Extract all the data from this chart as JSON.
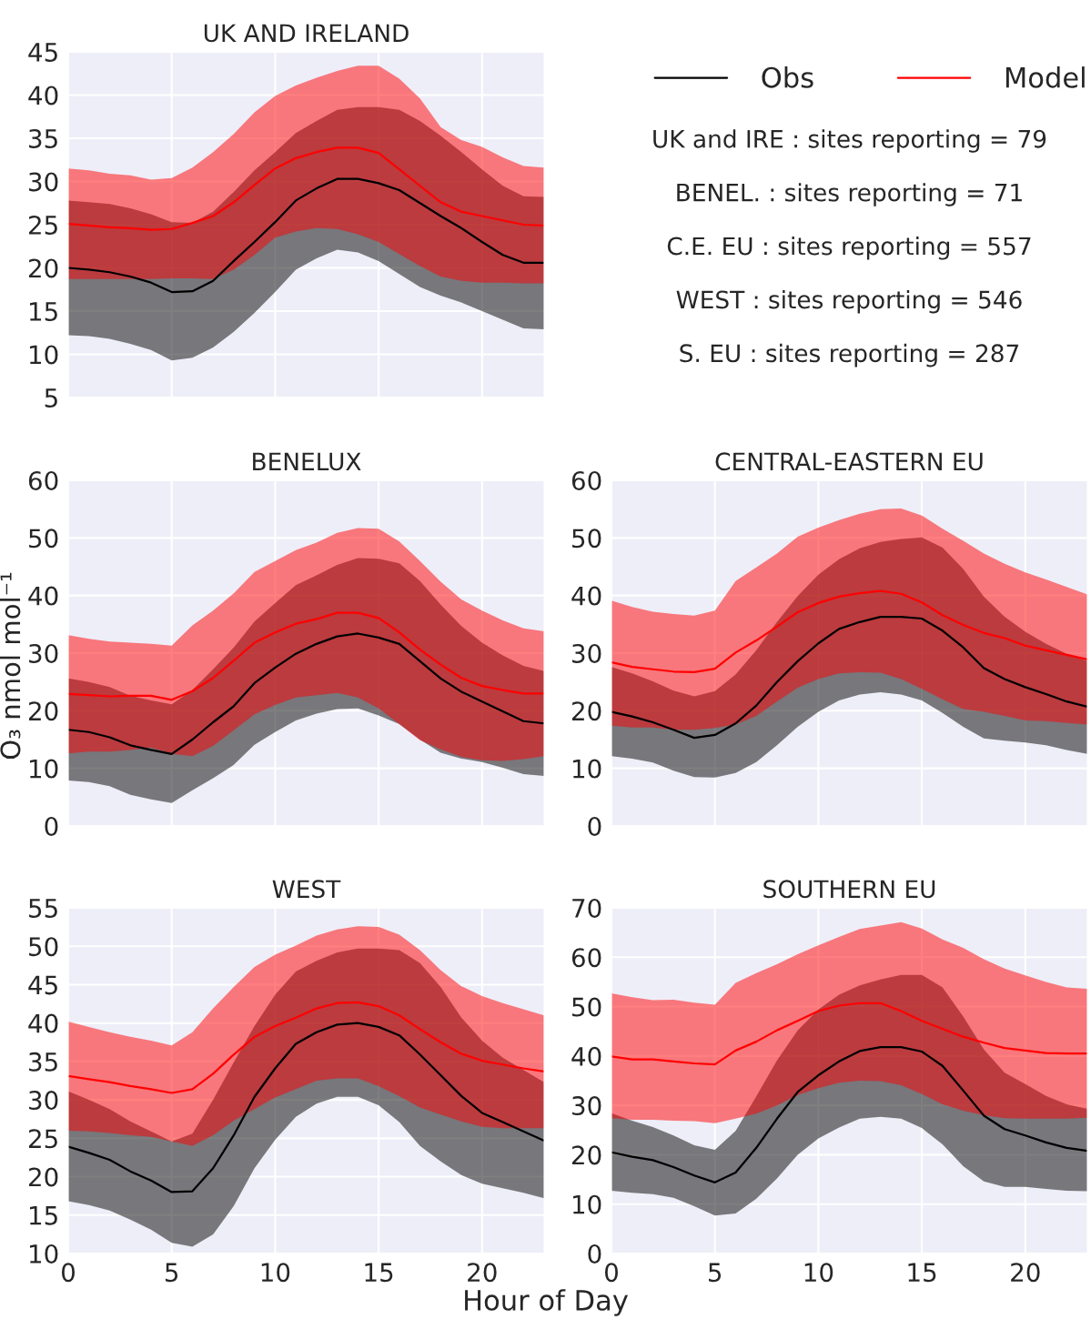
{
  "chart_data": [
    {
      "type": "line",
      "title": "UK AND IRELAND",
      "x": [
        0,
        1,
        2,
        3,
        4,
        5,
        6,
        7,
        8,
        9,
        10,
        11,
        12,
        13,
        14,
        15,
        16,
        17,
        18,
        19,
        20,
        21,
        22,
        23
      ],
      "xlim": [
        0,
        23
      ],
      "xticks": [
        0,
        5,
        10,
        15,
        20
      ],
      "ylim": [
        5,
        45
      ],
      "yticks": [
        5,
        10,
        15,
        20,
        25,
        30,
        35,
        40,
        45
      ],
      "tick_labels": "y",
      "grid": true,
      "legend": "right",
      "series": [
        {
          "name": "Obs",
          "color": "#000000",
          "values": [
            20,
            19.8,
            19.5,
            19,
            18.3,
            17.2,
            17.3,
            18.5,
            20.8,
            23,
            25.3,
            27.8,
            29.2,
            30.3,
            30.3,
            29.8,
            29,
            27.5,
            26,
            24.6,
            23,
            21.5,
            20.6,
            20.6
          ],
          "lower": [
            12.2,
            12.1,
            11.8,
            11.2,
            10.5,
            9.3,
            9.6,
            10.8,
            12.6,
            14.8,
            17.2,
            19.8,
            21.1,
            22.1,
            21.8,
            20.8,
            19.3,
            17.8,
            16.8,
            16,
            15,
            14,
            13,
            12.9
          ],
          "upper": [
            27.8,
            27.6,
            27.4,
            26.9,
            26.2,
            25.3,
            25.2,
            26.5,
            28.8,
            31.3,
            33.4,
            35.6,
            37,
            38.3,
            38.6,
            38.6,
            38.3,
            37,
            35.3,
            33.4,
            31.4,
            29.5,
            28.3,
            28.2
          ]
        },
        {
          "name": "Model",
          "color": "#ff0000",
          "values": [
            25.1,
            24.9,
            24.7,
            24.6,
            24.4,
            24.5,
            25.2,
            26,
            27.6,
            29.6,
            31.5,
            32.7,
            33.4,
            33.9,
            33.9,
            33.3,
            31.4,
            29.5,
            27.6,
            26.5,
            26,
            25.5,
            25,
            24.9
          ],
          "lower": [
            18.7,
            18.7,
            18.7,
            18.7,
            18.7,
            18.8,
            18.8,
            18.7,
            19.8,
            21.5,
            23.5,
            24.2,
            24.6,
            24.5,
            23.9,
            23,
            21.6,
            20.2,
            19,
            18.5,
            18.3,
            18.3,
            18.2,
            18.2
          ],
          "upper": [
            31.5,
            31.3,
            30.9,
            30.7,
            30.2,
            30.4,
            31.6,
            33.4,
            35.5,
            38,
            39.9,
            41.1,
            42,
            42.8,
            43.4,
            43.4,
            41.9,
            39.6,
            36.3,
            34.8,
            34,
            32.8,
            31.8,
            31.6
          ]
        }
      ]
    },
    {
      "type": "other",
      "annotations": [
        "UK and IRE : sites reporting = 79",
        "BENEL. : sites reporting = 71",
        "C.E. EU : sites reporting = 557",
        "WEST : sites reporting = 546",
        "S. EU : sites reporting = 287"
      ]
    },
    {
      "type": "line",
      "title": "BENELUX",
      "ylabel": "O₃ nmol mol⁻¹",
      "x": [
        0,
        1,
        2,
        3,
        4,
        5,
        6,
        7,
        8,
        9,
        10,
        11,
        12,
        13,
        14,
        15,
        16,
        17,
        18,
        19,
        20,
        21,
        22,
        23
      ],
      "xlim": [
        0,
        23
      ],
      "xticks": [
        0,
        5,
        10,
        15,
        20
      ],
      "ylim": [
        0,
        60
      ],
      "yticks": [
        0,
        10,
        20,
        30,
        40,
        50,
        60
      ],
      "tick_labels": "y",
      "grid": true,
      "series": [
        {
          "color": "#000000",
          "values": [
            16.7,
            16.3,
            15.4,
            14,
            13.2,
            12.5,
            15,
            18,
            20.8,
            24.8,
            27.5,
            29.9,
            31.6,
            32.9,
            33.4,
            32.7,
            31.6,
            28.6,
            25.6,
            23.3,
            21.6,
            19.9,
            18.2,
            17.8
          ],
          "lower": [
            7.9,
            7.6,
            6.9,
            5.4,
            4.6,
            4,
            6.2,
            8.3,
            10.6,
            14.1,
            16.3,
            18.3,
            19.5,
            20.3,
            20.4,
            19.2,
            17.7,
            15,
            12.7,
            11.7,
            11.1,
            10.1,
            9,
            8.7
          ],
          "upper": [
            25.6,
            25,
            24.1,
            22.6,
            21.8,
            21.1,
            23.6,
            27.2,
            31,
            35.5,
            38.7,
            41.8,
            43.5,
            45.3,
            46.5,
            46.4,
            45.6,
            42.5,
            38.4,
            34.7,
            31.8,
            29.6,
            27.8,
            26.9
          ]
        },
        {
          "color": "#ff0000",
          "values": [
            22.9,
            22.7,
            22.5,
            22.6,
            22.6,
            21.9,
            23.4,
            25.7,
            28.7,
            31.8,
            33.6,
            35.1,
            35.9,
            37,
            37,
            36.1,
            33.6,
            30.6,
            28,
            25.7,
            24.3,
            23.6,
            23,
            23
          ],
          "lower": [
            12.6,
            12.9,
            12.9,
            13.2,
            13.6,
            12.5,
            12.1,
            13.9,
            16.6,
            19.4,
            21,
            22.3,
            22.7,
            23.1,
            22.3,
            20.4,
            17.7,
            14.9,
            13.3,
            12,
            11.4,
            11.3,
            11.6,
            12.1
          ],
          "upper": [
            33.1,
            32.5,
            32,
            31.8,
            31.6,
            31.3,
            34.8,
            37.4,
            40.4,
            44.1,
            46,
            47.9,
            49.2,
            50.9,
            51.7,
            51.6,
            49.4,
            46,
            42.4,
            39.3,
            37.4,
            35.7,
            34.3,
            33.8
          ]
        }
      ]
    },
    {
      "type": "line",
      "title": "CENTRAL-EASTERN EU",
      "x": [
        0,
        1,
        2,
        3,
        4,
        5,
        6,
        7,
        8,
        9,
        10,
        11,
        12,
        13,
        14,
        15,
        16,
        17,
        18,
        19,
        20,
        21,
        22,
        23
      ],
      "xlim": [
        0,
        23
      ],
      "xticks": [
        0,
        5,
        10,
        15,
        20
      ],
      "ylim": [
        0,
        60
      ],
      "yticks": [
        0,
        10,
        20,
        30,
        40,
        50,
        60
      ],
      "tick_labels": "y",
      "grid": true,
      "series": [
        {
          "color": "#000000",
          "values": [
            19.8,
            19,
            18,
            16.7,
            15.3,
            15.8,
            17.8,
            20.9,
            25,
            28.6,
            31.7,
            34.2,
            35.4,
            36.3,
            36.3,
            36,
            33.9,
            31,
            27.4,
            25.5,
            24.1,
            22.9,
            21.6,
            20.7
          ],
          "lower": [
            12.1,
            11.7,
            11,
            9.6,
            8.5,
            8.4,
            9.2,
            11.1,
            14,
            17.2,
            19.8,
            21.8,
            22.8,
            23.2,
            22.8,
            21.8,
            19.6,
            17.2,
            15.2,
            14.8,
            14.5,
            14,
            13.2,
            12.5
          ],
          "upper": [
            27.6,
            26.5,
            25.1,
            23.5,
            22.5,
            23.4,
            26.3,
            30.5,
            35.4,
            39.9,
            43.6,
            46.3,
            48.2,
            49.3,
            49.8,
            50.1,
            48.3,
            44.6,
            39.8,
            36.3,
            33.7,
            31.6,
            29.9,
            28.6
          ]
        },
        {
          "color": "#ff0000",
          "values": [
            28.4,
            27.6,
            27.2,
            26.8,
            26.7,
            27.3,
            30.1,
            32.2,
            34.6,
            37.1,
            38.7,
            39.8,
            40.4,
            40.8,
            40.3,
            38.8,
            36.6,
            34.9,
            33.5,
            32.6,
            31.3,
            30.5,
            29.7,
            28.9
          ],
          "lower": [
            17.4,
            17.1,
            17.1,
            16.7,
            16.7,
            17,
            17.6,
            19.1,
            21.6,
            24,
            25.5,
            26.5,
            26.7,
            26.6,
            25.5,
            23.8,
            22,
            20.3,
            19.8,
            19.1,
            18.3,
            18.2,
            17.9,
            17.6
          ],
          "upper": [
            39.1,
            38,
            37.2,
            36.8,
            36.5,
            37.4,
            42.5,
            44.9,
            47.3,
            50.2,
            51.8,
            53.1,
            54.2,
            55,
            55.1,
            53.9,
            51.6,
            49.5,
            47.3,
            45.5,
            44,
            42.8,
            41.5,
            40.2
          ]
        }
      ]
    },
    {
      "type": "line",
      "title": "WEST",
      "xlabel": "Hour of Day",
      "x": [
        0,
        1,
        2,
        3,
        4,
        5,
        6,
        7,
        8,
        9,
        10,
        11,
        12,
        13,
        14,
        15,
        16,
        17,
        18,
        19,
        20,
        21,
        22,
        23
      ],
      "xlim": [
        0,
        23
      ],
      "xticks": [
        0,
        5,
        10,
        15,
        20
      ],
      "ylim": [
        10,
        55
      ],
      "yticks": [
        10,
        15,
        20,
        25,
        30,
        35,
        40,
        45,
        50,
        55
      ],
      "grid": true,
      "series": [
        {
          "color": "#000000",
          "values": [
            23.9,
            23.1,
            22.2,
            20.7,
            19.5,
            18,
            18.1,
            21.1,
            25.4,
            30.4,
            34.1,
            37.3,
            38.8,
            39.8,
            40,
            39.5,
            38.4,
            35.9,
            33.2,
            30.5,
            28.3,
            27.1,
            25.9,
            24.7
          ],
          "lower": [
            16.8,
            16.3,
            15.6,
            14.4,
            13.1,
            11.4,
            10.9,
            12.5,
            16.2,
            21.1,
            24.8,
            27.8,
            29.5,
            30.4,
            30.4,
            29.3,
            27.1,
            24,
            22,
            20.2,
            19.1,
            18.5,
            17.9,
            17.2
          ],
          "upper": [
            31.1,
            30,
            28.8,
            27.2,
            25.9,
            24.6,
            25.6,
            30,
            34.9,
            39.6,
            43.7,
            46.7,
            48.1,
            49.2,
            49.7,
            49.7,
            49.5,
            47.8,
            44.7,
            40.7,
            37.7,
            35.5,
            33.9,
            32.3
          ]
        },
        {
          "color": "#ff0000",
          "values": [
            33.1,
            32.7,
            32.3,
            31.8,
            31.4,
            30.9,
            31.4,
            33.4,
            35.9,
            38.2,
            39.6,
            40.7,
            41.9,
            42.6,
            42.7,
            42.2,
            41,
            39.2,
            37.5,
            36,
            35.1,
            34.6,
            34.1,
            33.7
          ],
          "lower": [
            26,
            25.9,
            25.7,
            25.4,
            25.2,
            24.6,
            24,
            25.4,
            27.3,
            28.8,
            30.3,
            31.4,
            32.5,
            32.8,
            32.8,
            31.8,
            30.5,
            29,
            28.1,
            27.2,
            26.5,
            26.3,
            26.3,
            26.3
          ],
          "upper": [
            40.2,
            39.5,
            38.8,
            38.2,
            37.7,
            37.1,
            38.8,
            41.9,
            44.7,
            47.3,
            48.9,
            50.1,
            51.4,
            52.2,
            52.6,
            52.5,
            51.5,
            49.5,
            46.9,
            44.8,
            43.5,
            42.6,
            41.8,
            41
          ]
        }
      ]
    },
    {
      "type": "line",
      "title": "SOUTHERN EU",
      "x": [
        0,
        1,
        2,
        3,
        4,
        5,
        6,
        7,
        8,
        9,
        10,
        11,
        12,
        13,
        14,
        15,
        16,
        17,
        18,
        19,
        20,
        21,
        22,
        23
      ],
      "xlim": [
        0,
        23
      ],
      "xticks": [
        0,
        5,
        10,
        15,
        20
      ],
      "ylim": [
        0,
        70
      ],
      "yticks": [
        0,
        10,
        20,
        30,
        40,
        50,
        60,
        70
      ],
      "grid": true,
      "series": [
        {
          "color": "#000000",
          "values": [
            20.5,
            19.6,
            18.9,
            17.5,
            15.8,
            14.4,
            16.4,
            21.4,
            27.3,
            32.7,
            36.1,
            38.9,
            41,
            41.8,
            41.8,
            40.9,
            38,
            33,
            27.9,
            25.2,
            23.9,
            22.5,
            21.4,
            20.8
          ],
          "lower": [
            12.7,
            12.3,
            12,
            11.3,
            9.6,
            7.7,
            8.1,
            11.1,
            15.2,
            20,
            23.3,
            25.5,
            27.3,
            27.7,
            27.3,
            25.4,
            22.1,
            17.7,
            14.6,
            13.5,
            13.5,
            13.1,
            12.7,
            12.6
          ],
          "upper": [
            28.4,
            26.9,
            25.6,
            23.9,
            21.9,
            21,
            24.8,
            31.8,
            39.1,
            45.2,
            49.4,
            52.4,
            54.3,
            55.5,
            56.4,
            56.4,
            53.9,
            48,
            41.3,
            36.6,
            34.3,
            31.9,
            30.2,
            29.3
          ]
        },
        {
          "color": "#ff0000",
          "values": [
            39.9,
            39.3,
            39.3,
            38.9,
            38.5,
            38.3,
            41.1,
            42.9,
            45.2,
            47.1,
            49.1,
            50.2,
            50.7,
            50.7,
            49.1,
            47.1,
            45.5,
            43.9,
            42.7,
            41.6,
            41.1,
            40.6,
            40.5,
            40.5
          ],
          "lower": [
            27.4,
            27.1,
            27.1,
            26.9,
            26.8,
            26.4,
            27.3,
            28.3,
            30,
            32.1,
            33.5,
            34.6,
            35,
            34.9,
            34.1,
            32.3,
            30.2,
            28.9,
            28,
            27.4,
            27.3,
            27.3,
            27.3,
            27.5
          ],
          "upper": [
            52.7,
            51.9,
            51.3,
            51.4,
            50.8,
            50.4,
            54.8,
            56.8,
            58.6,
            60.6,
            62.4,
            64.1,
            65.7,
            66.4,
            67.1,
            65.8,
            63.6,
            61.9,
            59.6,
            57.7,
            56.3,
            55,
            53.9,
            53.6
          ]
        }
      ]
    }
  ]
}
